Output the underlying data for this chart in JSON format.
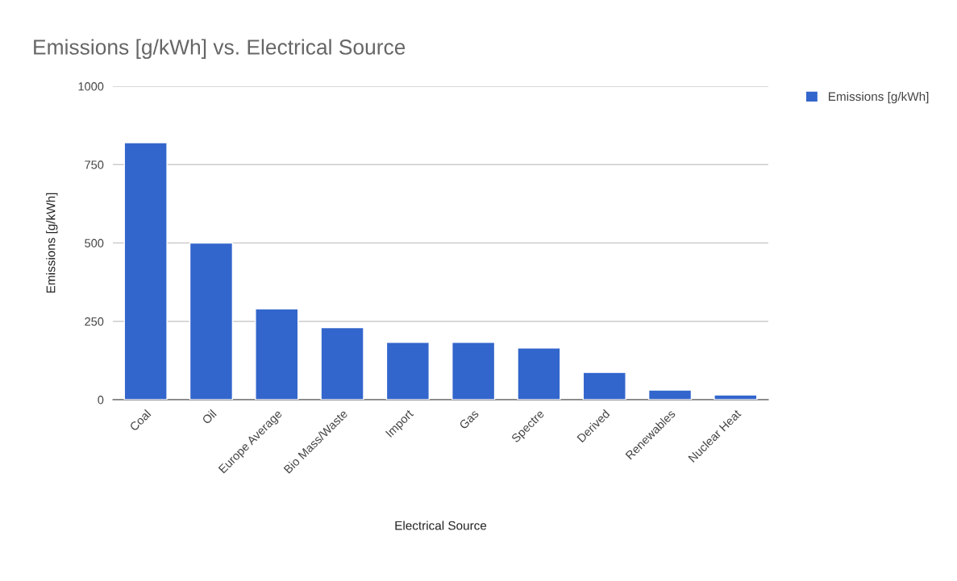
{
  "chart_data": {
    "type": "bar",
    "title": "Emissions [g/kWh] vs. Electrical Source",
    "xlabel": "Electrical Source",
    "ylabel": "Emissions [g/kWh]",
    "categories": [
      "Coal",
      "Oil",
      "Europe Average",
      "Bio Mass/Waste",
      "Import",
      "Gas",
      "Spectre",
      "Derived",
      "Renewables",
      "Nuclear Heat"
    ],
    "series": [
      {
        "name": "Emissions [g/kWh]",
        "color": "#3366cc",
        "values": [
          820,
          500,
          290,
          230,
          183,
          183,
          165,
          87,
          31,
          15
        ]
      }
    ],
    "ylim": [
      0,
      1000
    ],
    "yticks": [
      0,
      250,
      500,
      750,
      1000
    ],
    "grid": "y",
    "legend": "top right"
  }
}
